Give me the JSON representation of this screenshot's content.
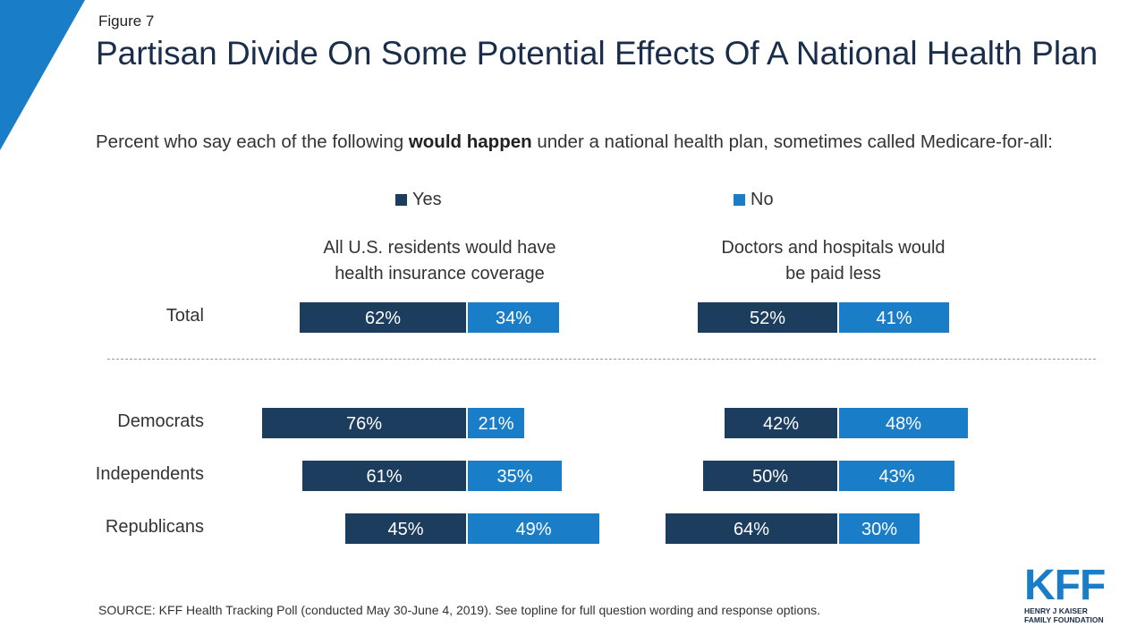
{
  "header": {
    "figure_label": "Figure 7",
    "title": "Partisan Divide On Some Potential Effects Of A National Health Plan",
    "subtitle_pre": "Percent who say each of the following ",
    "subtitle_bold": "would happen",
    "subtitle_post": " under a national health plan, sometimes called Medicare-for-all:"
  },
  "legend": {
    "yes_label": "Yes",
    "no_label": "No"
  },
  "colors": {
    "yes": "#1d3d5e",
    "no": "#1a7dc8",
    "accent_triangle": "#1a7dc8"
  },
  "chart_data": [
    {
      "type": "bar",
      "title": "All U.S. residents would have health insurance coverage",
      "categories": [
        "Total",
        "Democrats",
        "Independents",
        "Republicans"
      ],
      "series": [
        {
          "name": "Yes",
          "values": [
            62,
            76,
            61,
            45
          ]
        },
        {
          "name": "No",
          "values": [
            34,
            21,
            35,
            49
          ]
        }
      ]
    },
    {
      "type": "bar",
      "title": "Doctors and hospitals would be paid less",
      "categories": [
        "Total",
        "Democrats",
        "Independents",
        "Republicans"
      ],
      "series": [
        {
          "name": "Yes",
          "values": [
            52,
            42,
            50,
            64
          ]
        },
        {
          "name": "No",
          "values": [
            41,
            48,
            43,
            30
          ]
        }
      ]
    }
  ],
  "panels": {
    "left_title_line1": "All U.S. residents would have",
    "left_title_line2": "health insurance coverage",
    "right_title_line1": "Doctors and hospitals would",
    "right_title_line2": "be paid less"
  },
  "rows": {
    "total": "Total",
    "democrats": "Democrats",
    "independents": "Independents",
    "republicans": "Republicans"
  },
  "footer": {
    "source": "SOURCE: KFF Health Tracking Poll (conducted May 30-June 4, 2019). See topline for full question wording and response options.",
    "logo_text": "KFF",
    "logo_sub1": "HENRY J KAISER",
    "logo_sub2": "FAMILY FOUNDATION"
  }
}
